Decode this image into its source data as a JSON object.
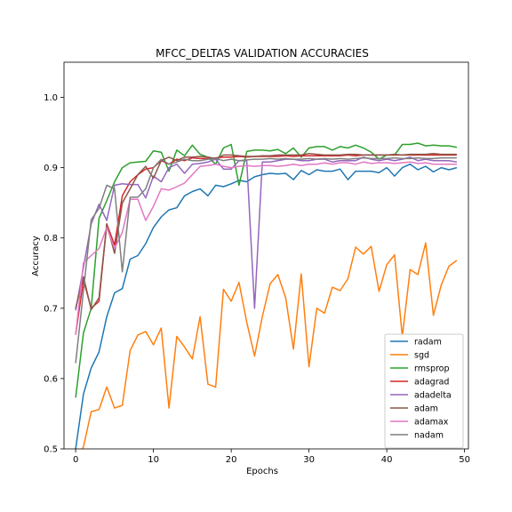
{
  "chart_data": {
    "type": "line",
    "title": "MFCC_DELTAS VALIDATION ACCURACIES",
    "xlabel": "Epochs",
    "ylabel": "Accuracy",
    "xlim": [
      -1.5,
      50.5
    ],
    "ylim": [
      0.5,
      1.05
    ],
    "xticks": [
      0,
      10,
      20,
      30,
      40,
      50
    ],
    "yticks": [
      0.5,
      0.6,
      0.7,
      0.8,
      0.9,
      1.0
    ],
    "xtick_labels": [
      "0",
      "10",
      "20",
      "30",
      "40",
      "50"
    ],
    "ytick_labels": [
      "0.5",
      "0.6",
      "0.7",
      "0.8",
      "0.9",
      "1.0"
    ],
    "grid": false,
    "legend_position": "lower-right",
    "x": [
      0,
      1,
      2,
      3,
      4,
      5,
      6,
      7,
      8,
      9,
      10,
      11,
      12,
      13,
      14,
      15,
      16,
      17,
      18,
      19,
      20,
      21,
      22,
      23,
      24,
      25,
      26,
      27,
      28,
      29,
      30,
      31,
      32,
      33,
      34,
      35,
      36,
      37,
      38,
      39,
      40,
      41,
      42,
      43,
      44,
      45,
      46,
      47,
      48,
      49
    ],
    "series": [
      {
        "name": "radam",
        "color": "#1f77b4",
        "values": [
          0.5,
          0.578,
          0.615,
          0.638,
          0.688,
          0.722,
          0.728,
          0.77,
          0.775,
          0.792,
          0.815,
          0.83,
          0.84,
          0.843,
          0.86,
          0.866,
          0.87,
          0.86,
          0.875,
          0.873,
          0.877,
          0.882,
          0.88,
          0.887,
          0.89,
          0.892,
          0.891,
          0.892,
          0.883,
          0.896,
          0.89,
          0.897,
          0.895,
          0.895,
          0.898,
          0.883,
          0.895,
          0.895,
          0.895,
          0.893,
          0.9,
          0.888,
          0.9,
          0.905,
          0.897,
          0.902,
          0.894,
          0.9,
          0.897,
          0.9
        ]
      },
      {
        "name": "sgd",
        "color": "#ff7f0e",
        "values": [
          0.48,
          0.503,
          0.553,
          0.556,
          0.588,
          0.558,
          0.562,
          0.64,
          0.662,
          0.667,
          0.648,
          0.672,
          0.558,
          0.66,
          0.645,
          0.628,
          0.688,
          0.592,
          0.588,
          0.727,
          0.71,
          0.737,
          0.68,
          0.632,
          0.688,
          0.735,
          0.748,
          0.715,
          0.642,
          0.749,
          0.617,
          0.7,
          0.693,
          0.73,
          0.725,
          0.742,
          0.787,
          0.777,
          0.788,
          0.724,
          0.762,
          0.776,
          0.66,
          0.755,
          0.748,
          0.793,
          0.69,
          0.733,
          0.76,
          0.768
        ]
      },
      {
        "name": "rmsprop",
        "color": "#2ca02c",
        "values": [
          0.573,
          0.665,
          0.7,
          0.828,
          0.853,
          0.88,
          0.9,
          0.907,
          0.908,
          0.909,
          0.924,
          0.922,
          0.895,
          0.925,
          0.917,
          0.932,
          0.919,
          0.915,
          0.905,
          0.928,
          0.933,
          0.875,
          0.923,
          0.925,
          0.925,
          0.924,
          0.926,
          0.92,
          0.928,
          0.915,
          0.928,
          0.93,
          0.93,
          0.925,
          0.93,
          0.928,
          0.932,
          0.928,
          0.922,
          0.912,
          0.918,
          0.918,
          0.933,
          0.933,
          0.935,
          0.931,
          0.932,
          0.931,
          0.931,
          0.929
        ]
      },
      {
        "name": "adagrad",
        "color": "#d62728",
        "values": [
          0.663,
          0.74,
          0.7,
          0.71,
          0.82,
          0.79,
          0.86,
          0.88,
          0.89,
          0.898,
          0.9,
          0.91,
          0.905,
          0.912,
          0.91,
          0.914,
          0.913,
          0.913,
          0.914,
          0.915,
          0.915,
          0.916,
          0.915,
          0.916,
          0.916,
          0.916,
          0.916,
          0.917,
          0.916,
          0.917,
          0.917,
          0.917,
          0.917,
          0.917,
          0.917,
          0.918,
          0.917,
          0.918,
          0.918,
          0.918,
          0.918,
          0.918,
          0.918,
          0.918,
          0.918,
          0.918,
          0.918,
          0.918,
          0.918,
          0.918
        ]
      },
      {
        "name": "adadelta",
        "color": "#9467bd",
        "values": [
          0.697,
          0.758,
          0.82,
          0.848,
          0.825,
          0.875,
          0.877,
          0.876,
          0.876,
          0.857,
          0.888,
          0.88,
          0.9,
          0.905,
          0.892,
          0.905,
          0.906,
          0.908,
          0.912,
          0.898,
          0.898,
          0.91,
          0.91,
          0.7,
          0.908,
          0.908,
          0.91,
          0.912,
          0.912,
          0.91,
          0.91,
          0.912,
          0.912,
          0.908,
          0.91,
          0.91,
          0.91,
          0.915,
          0.912,
          0.91,
          0.912,
          0.91,
          0.912,
          0.915,
          0.91,
          0.912,
          0.91,
          0.91,
          0.91,
          0.908
        ]
      },
      {
        "name": "adam",
        "color": "#8c564b",
        "values": [
          0.7,
          0.745,
          0.698,
          0.715,
          0.82,
          0.778,
          0.85,
          0.87,
          0.89,
          0.902,
          0.885,
          0.91,
          0.915,
          0.91,
          0.915,
          0.915,
          0.916,
          0.915,
          0.913,
          0.918,
          0.918,
          0.917,
          0.916,
          0.916,
          0.917,
          0.917,
          0.918,
          0.918,
          0.918,
          0.918,
          0.92,
          0.919,
          0.918,
          0.918,
          0.918,
          0.919,
          0.919,
          0.918,
          0.918,
          0.918,
          0.918,
          0.919,
          0.918,
          0.919,
          0.919,
          0.919,
          0.92,
          0.919,
          0.919,
          0.919
        ]
      },
      {
        "name": "adamax",
        "color": "#e377c2",
        "values": [
          0.662,
          0.765,
          0.775,
          0.785,
          0.815,
          0.785,
          0.808,
          0.855,
          0.855,
          0.825,
          0.845,
          0.87,
          0.868,
          0.873,
          0.878,
          0.89,
          0.902,
          0.903,
          0.905,
          0.902,
          0.9,
          0.902,
          0.903,
          0.902,
          0.903,
          0.903,
          0.902,
          0.903,
          0.905,
          0.903,
          0.905,
          0.905,
          0.907,
          0.905,
          0.907,
          0.907,
          0.905,
          0.908,
          0.906,
          0.907,
          0.907,
          0.906,
          0.907,
          0.908,
          0.906,
          0.907,
          0.905,
          0.905,
          0.905,
          0.905
        ]
      },
      {
        "name": "nadam",
        "color": "#7f7f7f",
        "values": [
          0.622,
          0.725,
          0.826,
          0.842,
          0.875,
          0.87,
          0.752,
          0.858,
          0.858,
          0.87,
          0.9,
          0.912,
          0.905,
          0.908,
          0.912,
          0.91,
          0.91,
          0.912,
          0.913,
          0.91,
          0.912,
          0.91,
          0.911,
          0.912,
          0.912,
          0.913,
          0.912,
          0.913,
          0.912,
          0.912,
          0.913,
          0.912,
          0.913,
          0.912,
          0.913,
          0.912,
          0.913,
          0.914,
          0.913,
          0.913,
          0.913,
          0.914,
          0.913,
          0.913,
          0.914,
          0.913,
          0.913,
          0.914,
          0.914,
          0.914
        ]
      }
    ]
  }
}
